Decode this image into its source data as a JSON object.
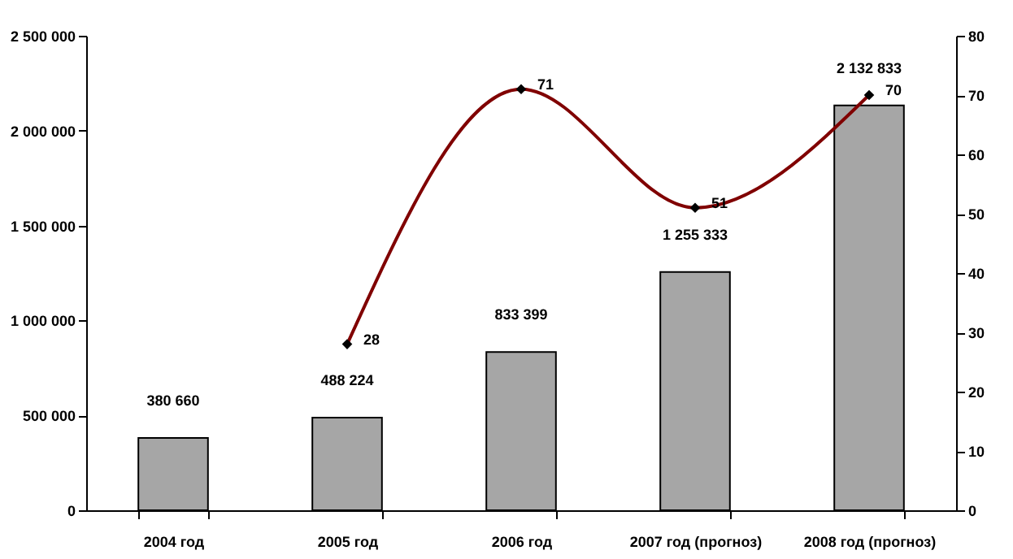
{
  "chart_data": {
    "type": "bar",
    "categories": [
      "2004 год",
      "2005 год",
      "2006 год",
      "2007 год (прогноз)",
      "2008 год (прогноз)"
    ],
    "series": [
      {
        "color": "#a6a6a6",
        "values": [
          380660,
          488224,
          833399,
          1255333,
          2132833
        ],
        "value_labels": [
          "380 660",
          "488 224",
          "833 399",
          "1 255 333",
          "2 132 833"
        ]
      },
      {
        "type": "line",
        "axis": "y2",
        "color": "#800000",
        "values": [
          null,
          28,
          71,
          51,
          70
        ],
        "value_labels": [
          null,
          "28",
          "71",
          "51",
          "70"
        ]
      }
    ],
    "ylim": [
      0,
      2500000
    ],
    "yticks": [
      0,
      {
        "value": 500000,
        "label": "500 000"
      },
      {
        "value": 1000000,
        "label": "1 000 000"
      },
      {
        "value": 1500000,
        "label": "1 500 000"
      },
      {
        "value": 2000000,
        "label": "2 000 000"
      },
      {
        "value": 2500000,
        "label": "2 500 000"
      }
    ],
    "y2lim": [
      0,
      80
    ],
    "y2ticks": [
      0,
      10,
      20,
      30,
      40,
      50,
      60,
      70,
      80
    ],
    "marker": "diamond",
    "grid": false
  }
}
